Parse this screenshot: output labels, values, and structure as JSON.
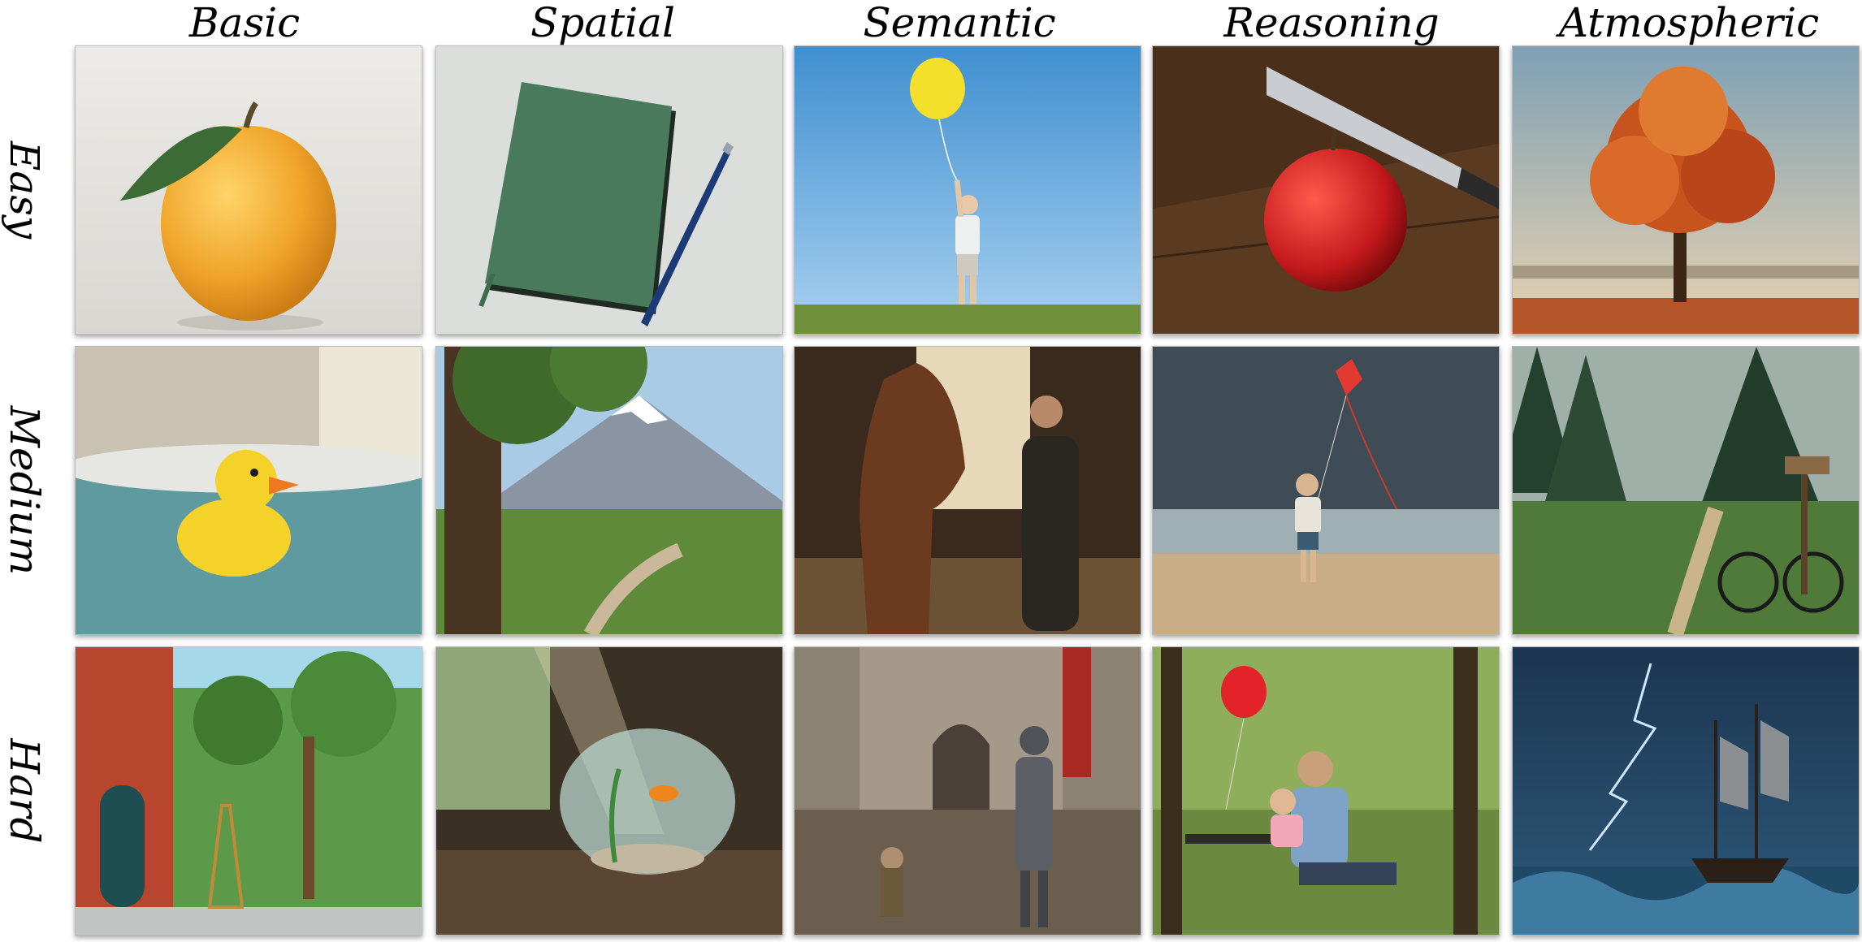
{
  "columns": [
    "Basic",
    "Spatial",
    "Semantic",
    "Reasoning",
    "Atmospheric"
  ],
  "rows": [
    "Easy",
    "Medium",
    "Hard"
  ],
  "images": {
    "easy": [
      "orange-with-leaf",
      "notebook-and-pen",
      "child-with-yellow-balloon",
      "apple-with-knife",
      "autumn-tree"
    ],
    "medium": [
      "rubber-duck-in-bath",
      "mountain-valley-with-tree",
      "woman-with-horse-in-stable",
      "boy-flying-kite-on-stormy-beach",
      "forest-path-with-bicycle"
    ],
    "hard": [
      "street-mural-with-painter",
      "fishbowl-by-window",
      "knight-in-medieval-courtyard",
      "father-reading-to-girl-on-bench",
      "ship-in-lightning-storm"
    ]
  },
  "colors": {
    "background": "#ffffff",
    "header_text": "#000000"
  }
}
